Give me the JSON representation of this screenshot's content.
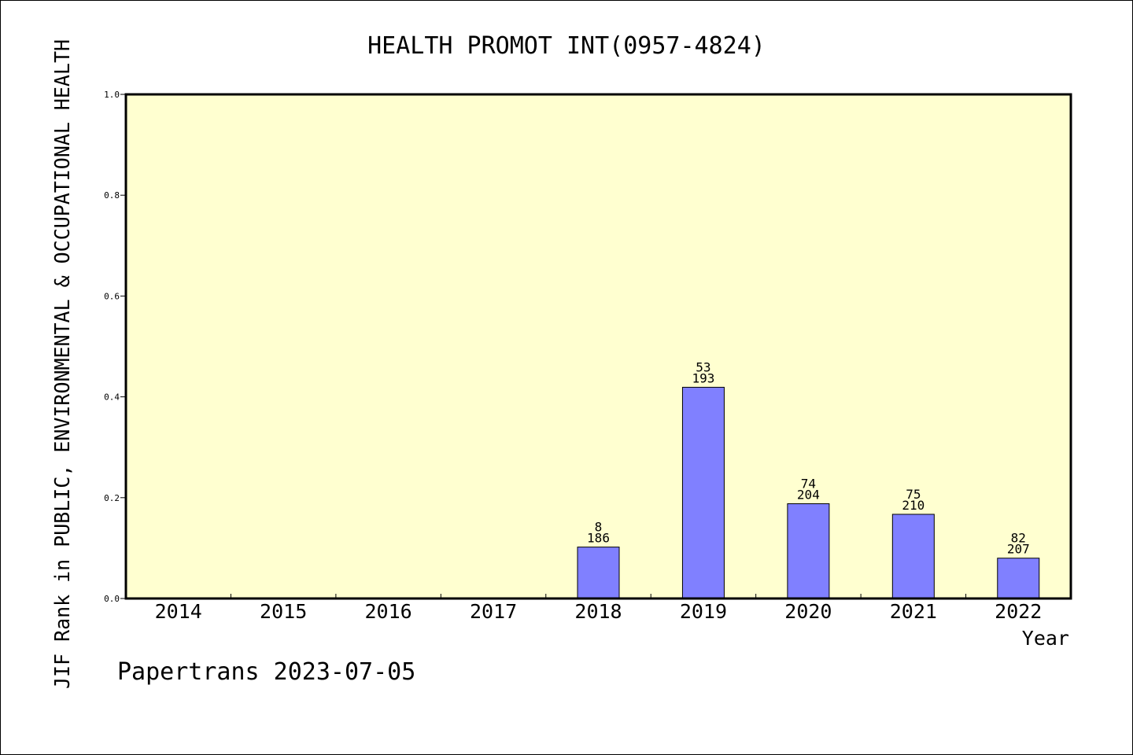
{
  "chart_data": {
    "type": "bar",
    "title": "HEALTH PROMOT INT(0957-4824)",
    "xlabel": "Year",
    "ylabel": "JIF Rank in PUBLIC, ENVIRONMENTAL & OCCUPATIONAL HEALTH",
    "footer": "Papertrans 2023-07-05",
    "categories": [
      "2014",
      "2015",
      "2016",
      "2017",
      "2018",
      "2019",
      "2020",
      "2021",
      "2022"
    ],
    "values": [
      null,
      null,
      null,
      null,
      0.102,
      0.419,
      0.188,
      0.167,
      0.08
    ],
    "rank_labels": [
      {
        "rank": "",
        "total": ""
      },
      {
        "rank": "",
        "total": ""
      },
      {
        "rank": "",
        "total": ""
      },
      {
        "rank": "",
        "total": ""
      },
      {
        "rank": "8",
        "total": "186"
      },
      {
        "rank": "53",
        "total": "193"
      },
      {
        "rank": "74",
        "total": "204"
      },
      {
        "rank": "75",
        "total": "210"
      },
      {
        "rank": "82",
        "total": "207"
      }
    ],
    "ylim": [
      0,
      1.0
    ],
    "yticks": [
      "0.0",
      "0.2",
      "0.4",
      "0.6",
      "0.8",
      "1.0"
    ],
    "grid": false,
    "colors": {
      "plot_background": "#ffffd0",
      "bar_fill": "#8080ff",
      "bar_stroke": "#000000"
    }
  }
}
